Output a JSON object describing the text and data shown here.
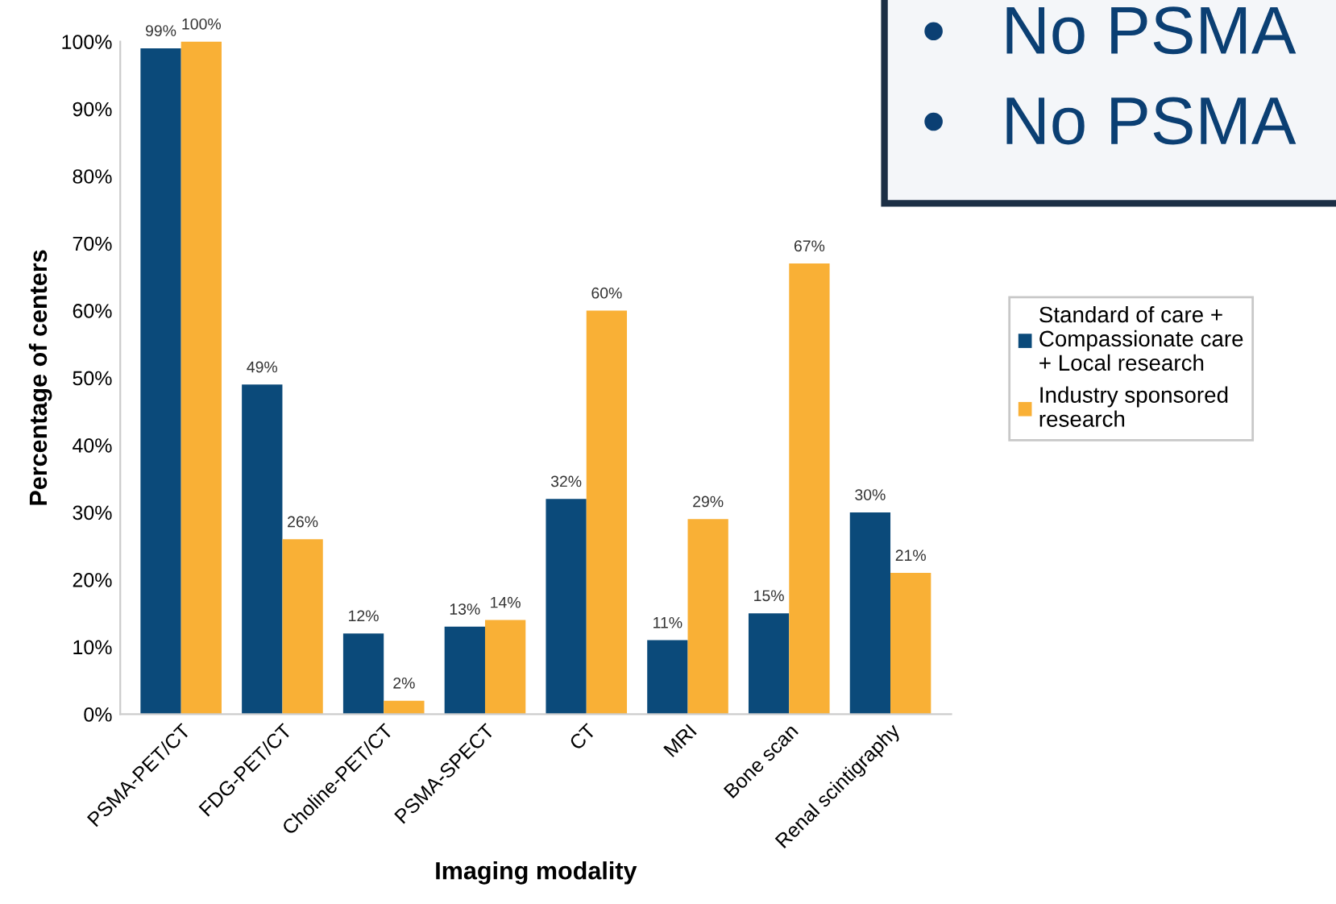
{
  "chart_data": {
    "type": "bar",
    "xlabel": "Imaging modality",
    "ylabel": "Percentage of centers",
    "categories": [
      "PSMA-PET/CT",
      "FDG-PET/CT",
      "Choline-PET/CT",
      "PSMA-SPECT",
      "CT",
      "MRI",
      "Bone scan",
      "Renal scintigraphy"
    ],
    "series": [
      {
        "name": "Standard of care +\nCompassionate care\n+ Local research",
        "color": "#0b4a7a",
        "values": [
          99,
          49,
          12,
          13,
          32,
          11,
          15,
          30
        ],
        "value_labels": [
          "99%",
          "49%",
          "12%",
          "13%",
          "32%",
          "11%",
          "15%",
          "30%"
        ]
      },
      {
        "name": "Industry sponsored\nresearch",
        "color": "#f9b036",
        "values": [
          100,
          26,
          2,
          14,
          60,
          29,
          67,
          21
        ],
        "value_labels": [
          "100%",
          "26%",
          "2%",
          "14%",
          "60%",
          "29%",
          "67%",
          "21%"
        ]
      }
    ],
    "ylim": [
      0,
      100
    ],
    "yticks": [
      {
        "value": 0,
        "label": "0%"
      },
      {
        "value": 10,
        "label": "10%"
      },
      {
        "value": 20,
        "label": "20%"
      },
      {
        "value": 30,
        "label": "30%"
      },
      {
        "value": 40,
        "label": "40%"
      },
      {
        "value": 50,
        "label": "50%"
      },
      {
        "value": 60,
        "label": "60%"
      },
      {
        "value": 70,
        "label": "70%"
      },
      {
        "value": 80,
        "label": "80%"
      },
      {
        "value": 90,
        "label": "90%"
      },
      {
        "value": 100,
        "label": "100%"
      }
    ],
    "grid": false,
    "legend": "right",
    "annotations": [
      "•   No PSMA",
      "•   No PSMA"
    ]
  }
}
